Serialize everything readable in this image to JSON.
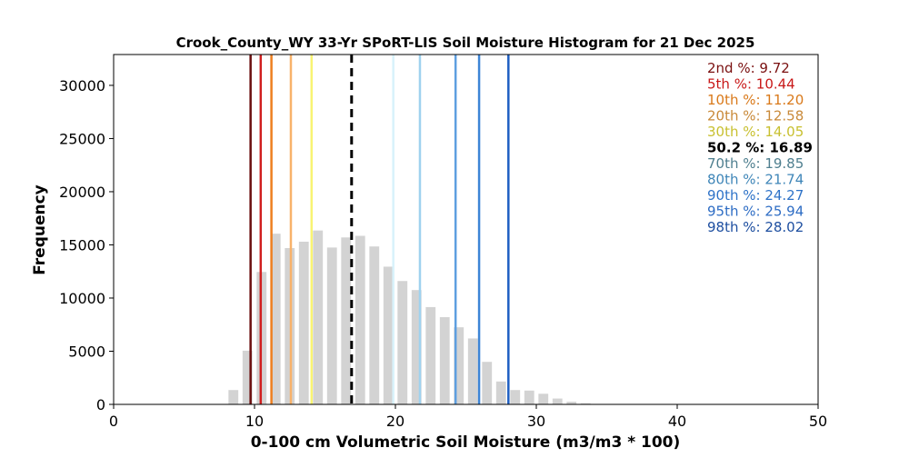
{
  "chart_data": {
    "type": "bar",
    "title": "Crook_County_WY 33-Yr SPoRT-LIS Soil Moisture Histogram for 21 Dec 2025",
    "xlabel": "0-100 cm Volumetric Soil Moisture (m3/m3 * 100)",
    "ylabel": "Frequency",
    "xlim": [
      0,
      50
    ],
    "ylim": [
      0,
      32900
    ],
    "xticks": [
      0,
      10,
      20,
      30,
      40,
      50
    ],
    "yticks": [
      0,
      5000,
      10000,
      15000,
      20000,
      25000,
      30000
    ],
    "grid": false,
    "bar_color": "#d3d3d3",
    "bar_width": 0.7,
    "x": [
      8.5,
      9.5,
      10.5,
      11.5,
      12.5,
      13.5,
      14.5,
      15.5,
      16.5,
      17.5,
      18.5,
      19.5,
      20.5,
      21.5,
      22.5,
      23.5,
      24.5,
      25.5,
      26.5,
      27.5,
      28.5,
      29.5,
      30.5,
      31.5,
      32.5,
      33.5
    ],
    "values": [
      1350,
      5050,
      12450,
      16050,
      14700,
      15300,
      16350,
      14750,
      15700,
      15850,
      14850,
      12950,
      11600,
      10750,
      9150,
      8200,
      7250,
      6200,
      4000,
      2150,
      1350,
      1300,
      1000,
      550,
      250,
      100
    ],
    "current": {
      "label": "50.2 %: 16.89",
      "value": 16.89,
      "color": "#000000",
      "style": "dashed"
    },
    "percentiles": [
      {
        "label": "2nd %: 9.72",
        "value": 9.72,
        "color": "#6b0f0f"
      },
      {
        "label": "5th %: 10.44",
        "value": 10.44,
        "color": "#d11f1f"
      },
      {
        "label": "10th %: 11.20",
        "value": 11.2,
        "color": "#ee7f1f"
      },
      {
        "label": "20th %: 12.58",
        "value": 12.58,
        "color": "#f8b26a"
      },
      {
        "label": "30th %: 14.05",
        "value": 14.05,
        "color": "#f8f472"
      },
      {
        "label": "70th %: 19.85",
        "value": 19.85,
        "color": "#d8f2fb"
      },
      {
        "label": "80th %: 21.74",
        "value": 21.74,
        "color": "#9fd2ef"
      },
      {
        "label": "90th %: 24.27",
        "value": 24.27,
        "color": "#5e9fe0"
      },
      {
        "label": "95th %: 25.94",
        "value": 25.94,
        "color": "#3d85d6"
      },
      {
        "label": "98th %: 28.02",
        "value": 28.02,
        "color": "#1f5fc2"
      }
    ],
    "legend": [
      {
        "label": "2nd %: 9.72",
        "color": "#7a1010"
      },
      {
        "label": "5th %: 10.44",
        "color": "#c81818"
      },
      {
        "label": "10th %: 11.20",
        "color": "#d9791a"
      },
      {
        "label": "20th %: 12.58",
        "color": "#c98a3a"
      },
      {
        "label": "30th %: 14.05",
        "color": "#c8c030"
      },
      {
        "label": "50.2 %: 16.89",
        "color": "#000000"
      },
      {
        "label": "70th %: 19.85",
        "color": "#4f7f8f"
      },
      {
        "label": "80th %: 21.74",
        "color": "#3f86b8"
      },
      {
        "label": "90th %: 24.27",
        "color": "#2f73c8"
      },
      {
        "label": "95th %: 25.94",
        "color": "#2d6cc4"
      },
      {
        "label": "98th %: 28.02",
        "color": "#1e4fa0"
      }
    ],
    "legend_position": "top-right"
  }
}
